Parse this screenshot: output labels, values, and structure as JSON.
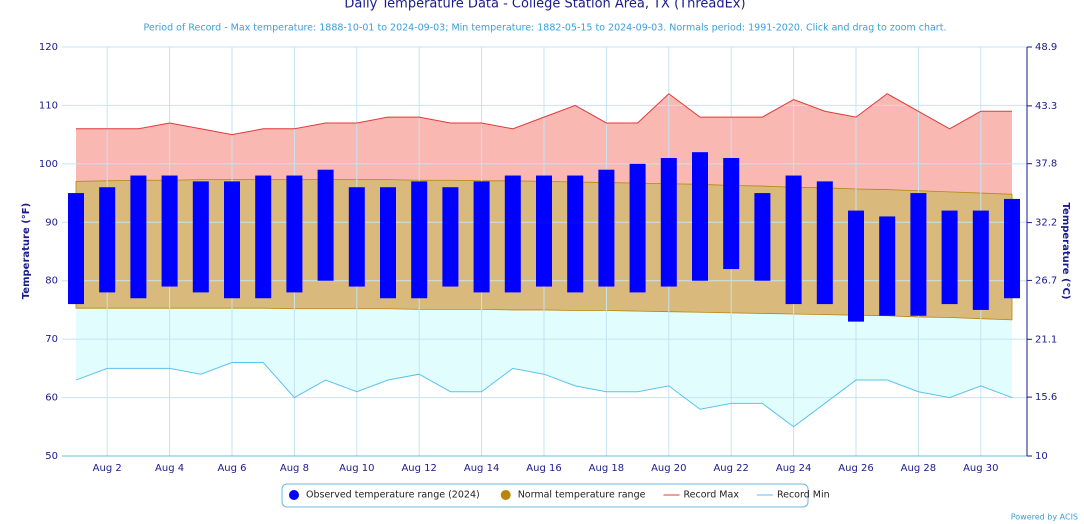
{
  "chart_data": {
    "type": "range-bar",
    "title": "Daily Temperature Data - College Station Area, TX (ThreadEx)",
    "subtitle": "Period of Record - Max temperature: 1888-10-01 to 2024-09-03; Min temperature: 1882-05-15 to 2024-09-03. Normals period: 1991-2020. Click and drag to zoom chart.",
    "y_label": "Temperature (°F)",
    "y2_label": "Temperature (°C)",
    "credit": "Powered by ACIS",
    "categories": [
      null,
      "Aug 2",
      null,
      "Aug 4",
      null,
      "Aug 6",
      null,
      "Aug 8",
      null,
      "Aug 10",
      null,
      "Aug 12",
      null,
      "Aug 14",
      null,
      "Aug 16",
      null,
      "Aug 18",
      null,
      "Aug 20",
      null,
      "Aug 22",
      null,
      "Aug 24",
      null,
      "Aug 26",
      null,
      "Aug 28",
      null,
      "Aug 30",
      null
    ],
    "series": [
      {
        "name": "Observed temperature range (2024)",
        "color": "#0000ff",
        "high": [
          95,
          96,
          98,
          98,
          97,
          97,
          98,
          98,
          99,
          96,
          96,
          97,
          96,
          97,
          98,
          98,
          98,
          99,
          100,
          101,
          102,
          101,
          95,
          98,
          97,
          92,
          91,
          95,
          92,
          92,
          94
        ],
        "low": [
          76,
          78,
          77,
          79,
          78,
          77,
          77,
          78,
          80,
          79,
          77,
          77,
          79,
          78,
          78,
          79,
          78,
          79,
          78,
          79,
          80,
          82,
          80,
          76,
          76,
          73,
          74,
          74,
          76,
          75,
          77
        ]
      },
      {
        "name": "Normal temperature range",
        "color": "#b8860b",
        "high": [
          97,
          97.1,
          97.2,
          97.2,
          97.3,
          97.3,
          97.3,
          97.3,
          97.3,
          97.3,
          97.3,
          97.2,
          97.2,
          97.1,
          97.1,
          97,
          96.9,
          96.8,
          96.7,
          96.6,
          96.5,
          96.3,
          96.2,
          96,
          95.9,
          95.7,
          95.6,
          95.4,
          95.2,
          95,
          94.8
        ],
        "low": [
          75.3,
          75.3,
          75.3,
          75.3,
          75.3,
          75.3,
          75.3,
          75.2,
          75.2,
          75.2,
          75.2,
          75.1,
          75.1,
          75.1,
          75,
          75,
          74.9,
          74.9,
          74.8,
          74.7,
          74.6,
          74.5,
          74.4,
          74.3,
          74.2,
          74.1,
          74,
          73.8,
          73.7,
          73.5,
          73.3
        ]
      },
      {
        "name": "Record Max",
        "color": "#e03a3a",
        "values": [
          106,
          106,
          106,
          107,
          106,
          105,
          106,
          106,
          107,
          107,
          108,
          108,
          107,
          107,
          106,
          108,
          110,
          107,
          107,
          112,
          108,
          108,
          108,
          111,
          109,
          108,
          112,
          109,
          106,
          109,
          109
        ]
      },
      {
        "name": "Record Min",
        "color": "#5bc3ee",
        "values": [
          63,
          65,
          65,
          65,
          64,
          66,
          66,
          60,
          63,
          61,
          63,
          64,
          61,
          61,
          65,
          64,
          62,
          61,
          61,
          62,
          58,
          59,
          59,
          55,
          59,
          63,
          63,
          61,
          60,
          62,
          60
        ]
      }
    ],
    "ylim": [
      50,
      120
    ],
    "yticks": [
      50,
      60,
      70,
      80,
      90,
      100,
      110,
      120
    ],
    "y2lim": [
      10,
      48.9
    ],
    "y2ticks": [
      10,
      15.6,
      21.1,
      26.7,
      32.2,
      37.8,
      43.3,
      48.9
    ],
    "grid": true
  }
}
